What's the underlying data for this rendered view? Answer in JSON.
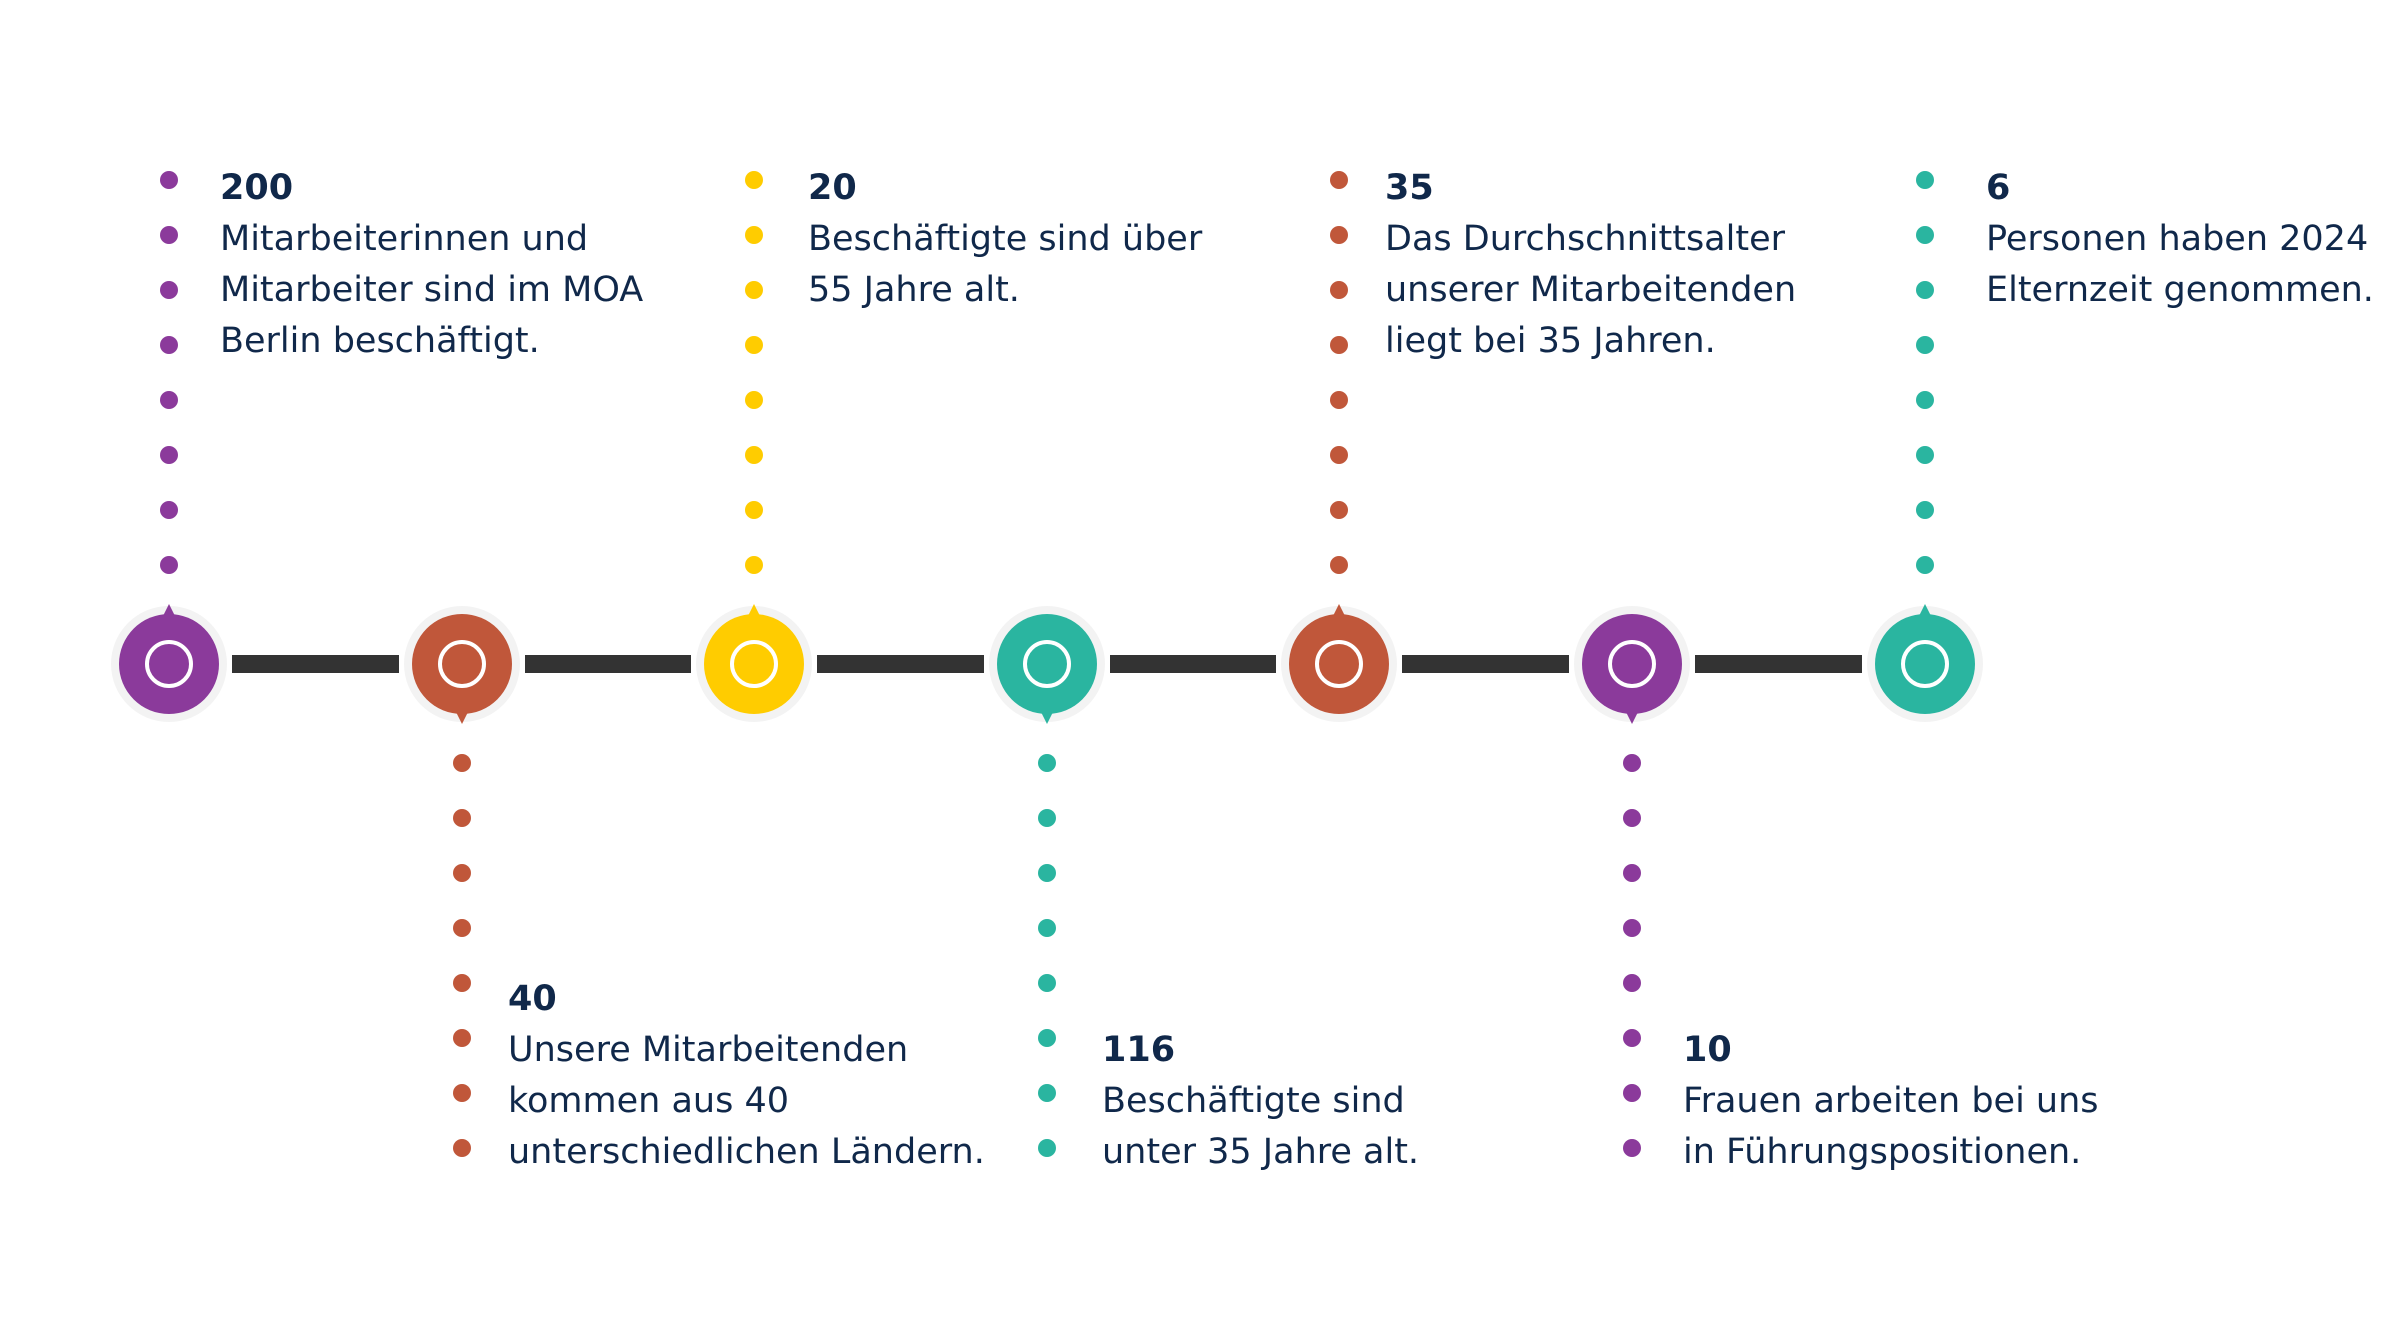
{
  "colors": {
    "purple": "#8b3a9b",
    "orange": "#c0573a",
    "yellow": "#ffcc00",
    "teal": "#2ab5a0",
    "connector": "#333333",
    "text": "#10284a"
  },
  "stats": [
    {
      "number": "200",
      "lines": [
        "Mitarbeiterinnen und",
        "Mitarbeiter sind im MOA",
        "Berlin beschäftigt."
      ]
    },
    {
      "number": "40",
      "lines": [
        "Unsere Mitarbeitenden",
        "kommen aus 40",
        "unterschiedlichen Ländern."
      ]
    },
    {
      "number": "20",
      "lines": [
        "Beschäftigte sind über",
        "55 Jahre alt."
      ]
    },
    {
      "number": "116",
      "lines": [
        "Beschäftigte sind",
        "unter 35 Jahre alt."
      ]
    },
    {
      "number": "35",
      "lines": [
        "Das Durchschnittsalter",
        "unserer Mitarbeitenden",
        "liegt bei 35 Jahren."
      ]
    },
    {
      "number": "10",
      "lines": [
        "Frauen arbeiten bei uns",
        "in Führungspositionen."
      ]
    },
    {
      "number": "6",
      "lines": [
        "Personen haben 2024",
        "Elternzeit genommen."
      ]
    }
  ],
  "nodes": [
    {
      "color_key": "purple",
      "icon": "ring-icon"
    },
    {
      "color_key": "orange",
      "icon": "ring-icon"
    },
    {
      "color_key": "yellow",
      "icon": "ring-icon"
    },
    {
      "color_key": "teal",
      "icon": "ring-icon"
    },
    {
      "color_key": "orange",
      "icon": "ring-icon"
    },
    {
      "color_key": "purple",
      "icon": "ring-icon"
    },
    {
      "color_key": "teal",
      "icon": "ring-icon"
    }
  ]
}
